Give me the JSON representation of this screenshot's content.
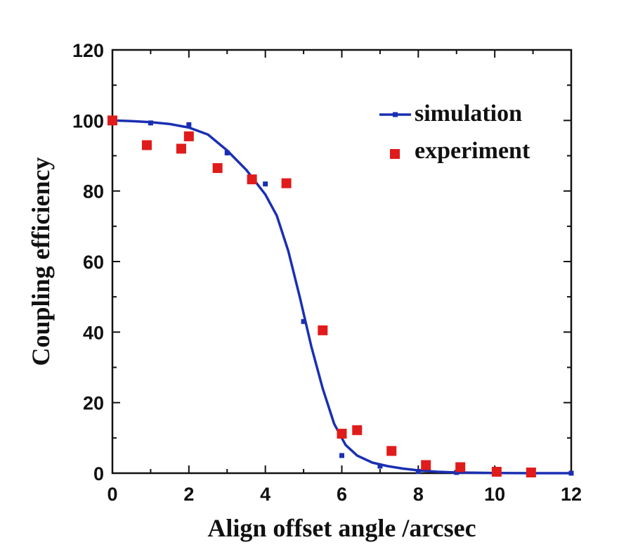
{
  "chart_data": {
    "type": "scatter",
    "xlabel": "Align offset angle /arcsec",
    "ylabel": "Coupling efficiency",
    "xlim": [
      0,
      12
    ],
    "ylim": [
      0,
      120
    ],
    "x_ticks": [
      "0",
      "2",
      "4",
      "6",
      "8",
      "10",
      "12"
    ],
    "y_ticks": [
      "0",
      "20",
      "40",
      "60",
      "80",
      "100",
      "120"
    ],
    "legend_position": "top-right",
    "series": [
      {
        "name": "simulation",
        "style": "line-with-markers",
        "color": "#1a2fb3",
        "points": [
          [
            0,
            100
          ],
          [
            1,
            99.3
          ],
          [
            2,
            98.8
          ],
          [
            3,
            90.8
          ],
          [
            4,
            82
          ],
          [
            5,
            43
          ],
          [
            6,
            5
          ],
          [
            7,
            2
          ],
          [
            8,
            0.5
          ],
          [
            9,
            0.2
          ],
          [
            10,
            0
          ],
          [
            11,
            0
          ],
          [
            12,
            0
          ]
        ],
        "curve": [
          [
            0,
            100
          ],
          [
            0.5,
            99.8
          ],
          [
            1,
            99.5
          ],
          [
            1.5,
            99
          ],
          [
            2,
            98
          ],
          [
            2.5,
            96
          ],
          [
            3,
            91.5
          ],
          [
            3.5,
            86
          ],
          [
            4,
            79
          ],
          [
            4.3,
            73
          ],
          [
            4.6,
            63
          ],
          [
            4.9,
            50
          ],
          [
            5.2,
            36
          ],
          [
            5.5,
            24
          ],
          [
            5.8,
            14
          ],
          [
            6.1,
            8
          ],
          [
            6.4,
            5
          ],
          [
            6.8,
            3
          ],
          [
            7.2,
            2
          ],
          [
            7.6,
            1.3
          ],
          [
            8,
            0.8
          ],
          [
            8.5,
            0.4
          ],
          [
            9,
            0.2
          ],
          [
            10,
            0.05
          ],
          [
            11,
            0
          ],
          [
            12,
            0
          ]
        ]
      },
      {
        "name": "experiment",
        "style": "markers",
        "color": "#e01b1b",
        "points": [
          [
            0,
            100
          ],
          [
            0.9,
            93
          ],
          [
            1.8,
            92
          ],
          [
            2,
            95.5
          ],
          [
            2.75,
            86.5
          ],
          [
            3.65,
            83.3
          ],
          [
            4.55,
            82.2
          ],
          [
            5.5,
            40.5
          ],
          [
            6,
            11.2
          ],
          [
            6.4,
            12.2
          ],
          [
            7.3,
            6.3
          ],
          [
            8.2,
            2.3
          ],
          [
            9.1,
            1.7
          ],
          [
            10.05,
            0.4
          ],
          [
            10.95,
            0.2
          ]
        ]
      }
    ]
  }
}
